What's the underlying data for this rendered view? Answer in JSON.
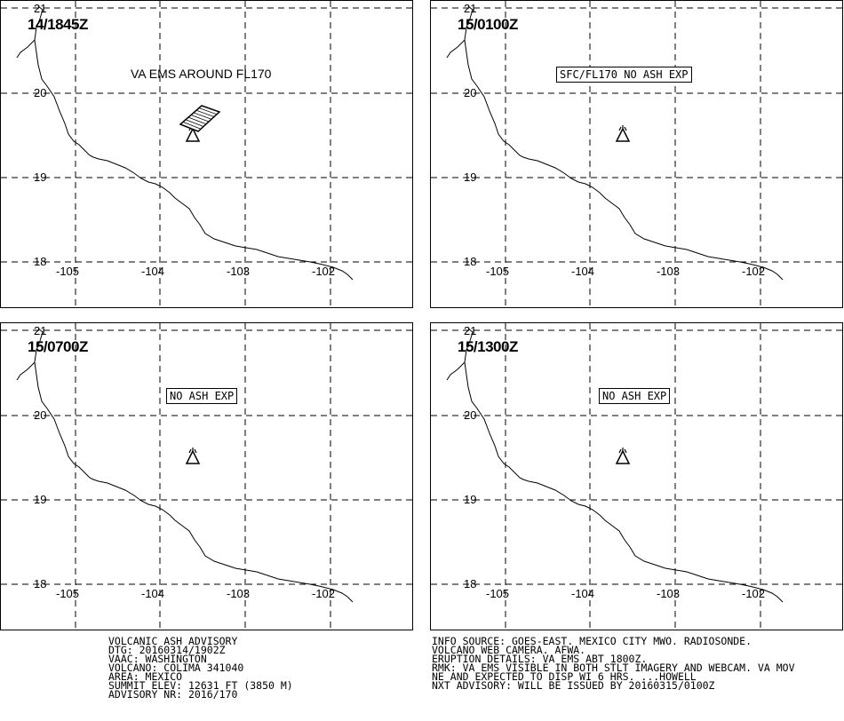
{
  "panels": [
    {
      "time": "14/1845Z",
      "note": "VA EMS AROUND FL170",
      "note_style": "plain",
      "ash_area": true
    },
    {
      "time": "15/0100Z",
      "note": "SFC/FL170 NO ASH EXP",
      "note_style": "box",
      "ash_area": false
    },
    {
      "time": "15/0700Z",
      "note": "NO ASH EXP",
      "note_style": "box",
      "ash_area": false
    },
    {
      "time": "15/1300Z",
      "note": "NO ASH EXP",
      "note_style": "box",
      "ash_area": false
    }
  ],
  "lat_labels": [
    "21",
    "20",
    "19",
    "18"
  ],
  "lon_labels": [
    "-105",
    "-104",
    "-103",
    "-102"
  ],
  "volcano_icon": "volcano-triangle-icon",
  "advisory": {
    "left": [
      "VOLCANIC ASH ADVISORY",
      "DTG: 20160314/1902Z",
      "VAAC: WASHINGTON",
      "VOLCANO: COLIMA 341040",
      "AREA: MEXICO",
      "SUMMIT ELEV: 12631 FT (3850 M)",
      "ADVISORY NR: 2016/170"
    ],
    "right": [
      "INFO SOURCE: GOES-EAST. MEXICO CITY MWO. RADIOSONDE.",
      "VOLCANO WEB CAMERA. AFWA.",
      "ERUPTION DETAILS: VA EMS ABT 1800Z.",
      "RMK: VA EMS VISIBLE IN BOTH STLT IMAGERY AND WEBCAM. VA MOV",
      "NE AND EXPECTED TO DISP WI 6 HRS. ...HOWELL",
      "NXT ADVISORY: WILL BE ISSUED BY 20160315/0100Z"
    ]
  }
}
